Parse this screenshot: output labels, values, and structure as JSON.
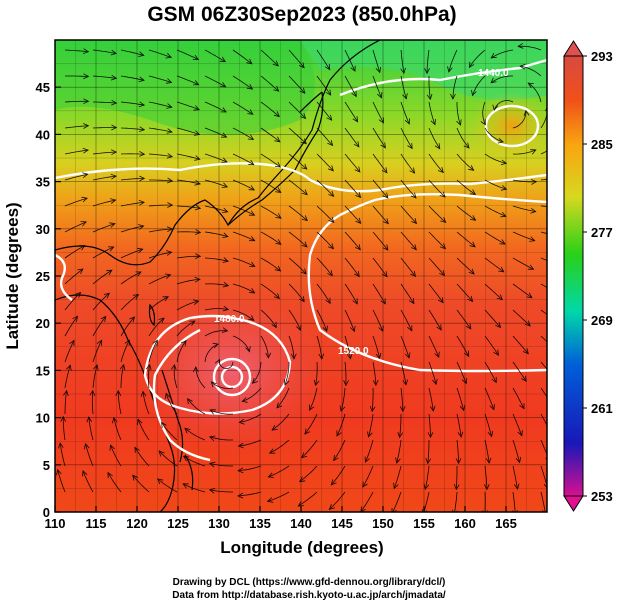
{
  "chart_data": {
    "type": "heatmap",
    "title": "GSM 06Z30Sep2023 (850.0hPa)",
    "xlabel": "Longitude (degrees)",
    "ylabel": "Latitude (degrees)",
    "xlim": [
      110,
      170
    ],
    "ylim": [
      0,
      50
    ],
    "x_ticks": [
      "110",
      "115",
      "120",
      "125",
      "130",
      "135",
      "140",
      "145",
      "150",
      "155",
      "160",
      "165"
    ],
    "y_ticks": [
      "0",
      "5",
      "10",
      "15",
      "20",
      "25",
      "30",
      "35",
      "40",
      "45"
    ],
    "grid": true,
    "colorbar": {
      "range": [
        253,
        293
      ],
      "ticks": [
        "293",
        "285",
        "277",
        "269",
        "261",
        "253"
      ],
      "colors": [
        "#d84a40",
        "#f0501a",
        "#f8a410",
        "#d8d820",
        "#2ad018",
        "#00d8a8",
        "#0060d8",
        "#1818b8",
        "#d81090"
      ]
    },
    "contours": [
      {
        "label": "1440.0"
      },
      {
        "label": "1480.0"
      },
      {
        "label": "1520.0"
      }
    ],
    "features": {
      "low_center": [
        131,
        16
      ],
      "high_center": [
        165,
        42
      ]
    },
    "credits": [
      "Drawing by DCL (https://www.gfd-dennou.org/library/dcl/)",
      "Data from http://database.rish.kyoto-u.ac.jp/arch/jmadata/"
    ]
  }
}
